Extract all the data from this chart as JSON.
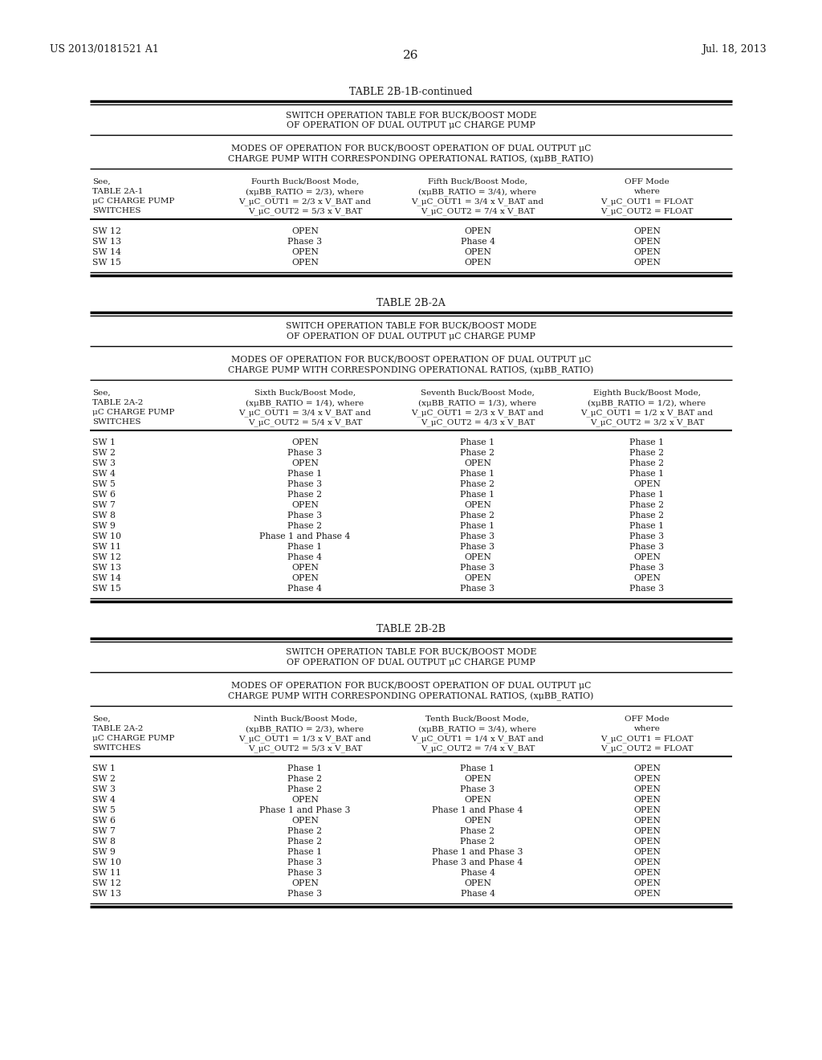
{
  "page_number": "26",
  "patent_number": "US 2013/0181521 A1",
  "patent_date": "Jul. 18, 2013",
  "background_color": "#ffffff",
  "text_color": "#1a1a1a",
  "tables": [
    {
      "id": "t0",
      "title": "TABLE 2B-1B-continued",
      "subtitle1_lines": [
        "SWITCH OPERATION TABLE FOR BUCK/BOOST MODE",
        "OF OPERATION OF DUAL OUTPUT μC CHARGE PUMP"
      ],
      "subtitle2_lines": [
        "MODES OF OPERATION FOR BUCK/BOOST OPERATION OF DUAL OUTPUT μC",
        "CHARGE PUMP WITH CORRESPONDING OPERATIONAL RATIOS, (xμBB_RATIO)"
      ],
      "col0_hdr": [
        "See,",
        "TABLE 2A-1",
        "μC CHARGE PUMP",
        "SWITCHES"
      ],
      "col1_hdr": [
        "Fourth Buck/Boost Mode,",
        "(xμBB_RATIO = 2/3), where",
        "V_μC_OUT1 = 2/3 x V_BAT and",
        "V_μC_OUT2 = 5/3 x V_BAT"
      ],
      "col2_hdr": [
        "Fifth Buck/Boost Mode,",
        "(xμBB_RATIO = 3/4), where",
        "V_μC_OUT1 = 3/4 x V_BAT and",
        "V_μC_OUT2 = 7/4 x V_BAT"
      ],
      "col3_hdr": [
        "OFF Mode",
        "where",
        "V_μC_OUT1 = FLOAT",
        "V_μC_OUT2 = FLOAT"
      ],
      "rows": [
        [
          "SW 12",
          "OPEN",
          "OPEN",
          "OPEN"
        ],
        [
          "SW 13",
          "Phase 3",
          "Phase 4",
          "OPEN"
        ],
        [
          "SW 14",
          "OPEN",
          "OPEN",
          "OPEN"
        ],
        [
          "SW 15",
          "OPEN",
          "OPEN",
          "OPEN"
        ]
      ]
    },
    {
      "id": "t1",
      "title": "TABLE 2B-2A",
      "subtitle1_lines": [
        "SWITCH OPERATION TABLE FOR BUCK/BOOST MODE",
        "OF OPERATION OF DUAL OUTPUT μC CHARGE PUMP"
      ],
      "subtitle2_lines": [
        "MODES OF OPERATION FOR BUCK/BOOST OPERATION OF DUAL OUTPUT μC",
        "CHARGE PUMP WITH CORRESPONDING OPERATIONAL RATIOS, (xμBB_RATIO)"
      ],
      "col0_hdr": [
        "See,",
        "TABLE 2A-2",
        "μC CHARGE PUMP",
        "SWITCHES"
      ],
      "col1_hdr": [
        "Sixth Buck/Boost Mode,",
        "(xμBB_RATIO = 1/4), where",
        "V_μC_OUT1 = 3/4 x V_BAT and",
        "V_μC_OUT2 = 5/4 x V_BAT"
      ],
      "col2_hdr": [
        "Seventh Buck/Boost Mode,",
        "(xμBB_RATIO = 1/3), where",
        "V_μC_OUT1 = 2/3 x V_BAT and",
        "V_μC_OUT2 = 4/3 x V_BAT"
      ],
      "col3_hdr": [
        "Eighth Buck/Boost Mode,",
        "(xμBB_RATIO = 1/2), where",
        "V_μC_OUT1 = 1/2 x V_BAT and",
        "V_μC_OUT2 = 3/2 x V_BAT"
      ],
      "rows": [
        [
          "SW 1",
          "OPEN",
          "Phase 1",
          "Phase 1"
        ],
        [
          "SW 2",
          "Phase 3",
          "Phase 2",
          "Phase 2"
        ],
        [
          "SW 3",
          "OPEN",
          "OPEN",
          "Phase 2"
        ],
        [
          "SW 4",
          "Phase 1",
          "Phase 1",
          "Phase 1"
        ],
        [
          "SW 5",
          "Phase 3",
          "Phase 2",
          "OPEN"
        ],
        [
          "SW 6",
          "Phase 2",
          "Phase 1",
          "Phase 1"
        ],
        [
          "SW 7",
          "OPEN",
          "OPEN",
          "Phase 2"
        ],
        [
          "SW 8",
          "Phase 3",
          "Phase 2",
          "Phase 2"
        ],
        [
          "SW 9",
          "Phase 2",
          "Phase 1",
          "Phase 1"
        ],
        [
          "SW 10",
          "Phase 1 and Phase 4",
          "Phase 3",
          "Phase 3"
        ],
        [
          "SW 11",
          "Phase 1",
          "Phase 3",
          "Phase 3"
        ],
        [
          "SW 12",
          "Phase 4",
          "OPEN",
          "OPEN"
        ],
        [
          "SW 13",
          "OPEN",
          "Phase 3",
          "Phase 3"
        ],
        [
          "SW 14",
          "OPEN",
          "OPEN",
          "OPEN"
        ],
        [
          "SW 15",
          "Phase 4",
          "Phase 3",
          "Phase 3"
        ]
      ]
    },
    {
      "id": "t2",
      "title": "TABLE 2B-2B",
      "subtitle1_lines": [
        "SWITCH OPERATION TABLE FOR BUCK/BOOST MODE",
        "OF OPERATION OF DUAL OUTPUT μC CHARGE PUMP"
      ],
      "subtitle2_lines": [
        "MODES OF OPERATION FOR BUCK/BOOST OPERATION OF DUAL OUTPUT μC",
        "CHARGE PUMP WITH CORRESPONDING OPERATIONAL RATIOS, (xμBB_RATIO)"
      ],
      "col0_hdr": [
        "See,",
        "TABLE 2A-2",
        "μC CHARGE PUMP",
        "SWITCHES"
      ],
      "col1_hdr": [
        "Ninth Buck/Boost Mode,",
        "(xμBB_RATIO = 2/3), where",
        "V_μC_OUT1 = 1/3 x V_BAT and",
        "V_μC_OUT2 = 5/3 x V_BAT"
      ],
      "col2_hdr": [
        "Tenth Buck/Boost Mode,",
        "(xμBB_RATIO = 3/4), where",
        "V_μC_OUT1 = 1/4 x V_BAT and",
        "V_μC_OUT2 = 7/4 x V_BAT"
      ],
      "col3_hdr": [
        "OFF Mode",
        "where",
        "V_μC_OUT1 = FLOAT",
        "V_μC_OUT2 = FLOAT"
      ],
      "rows": [
        [
          "SW 1",
          "Phase 1",
          "Phase 1",
          "OPEN"
        ],
        [
          "SW 2",
          "Phase 2",
          "OPEN",
          "OPEN"
        ],
        [
          "SW 3",
          "Phase 2",
          "Phase 3",
          "OPEN"
        ],
        [
          "SW 4",
          "OPEN",
          "OPEN",
          "OPEN"
        ],
        [
          "SW 5",
          "Phase 1 and Phase 3",
          "Phase 1 and Phase 4",
          "OPEN"
        ],
        [
          "SW 6",
          "OPEN",
          "OPEN",
          "OPEN"
        ],
        [
          "SW 7",
          "Phase 2",
          "Phase 2",
          "OPEN"
        ],
        [
          "SW 8",
          "Phase 2",
          "Phase 2",
          "OPEN"
        ],
        [
          "SW 9",
          "Phase 1",
          "Phase 1 and Phase 3",
          "OPEN"
        ],
        [
          "SW 10",
          "Phase 3",
          "Phase 3 and Phase 4",
          "OPEN"
        ],
        [
          "SW 11",
          "Phase 3",
          "Phase 4",
          "OPEN"
        ],
        [
          "SW 12",
          "OPEN",
          "OPEN",
          "OPEN"
        ],
        [
          "SW 13",
          "Phase 3",
          "Phase 4",
          "OPEN"
        ]
      ]
    }
  ]
}
